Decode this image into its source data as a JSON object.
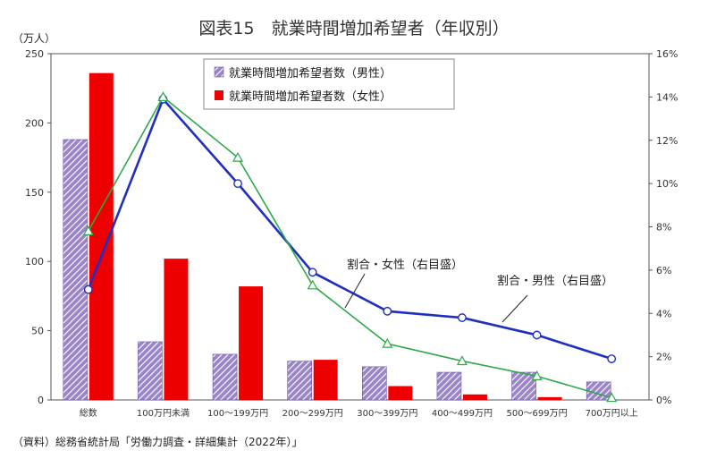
{
  "chart_data": {
    "type": "bar",
    "title": "図表15　就業時間増加希望者（年収別）",
    "y_left_unit": "（万人）",
    "y_left_ticks": [
      "0",
      "50",
      "100",
      "150",
      "200",
      "250"
    ],
    "y_left_lim": [
      0,
      250
    ],
    "y_right_ticks": [
      "0%",
      "2%",
      "4%",
      "6%",
      "8%",
      "10%",
      "12%",
      "14%",
      "16%"
    ],
    "y_right_lim": [
      0,
      16
    ],
    "categories": [
      "総数",
      "100万円未満",
      "100～199万円",
      "200～299万円",
      "300～399万円",
      "400～499万円",
      "500～699万円",
      "700万円以上"
    ],
    "series": [
      {
        "name": "就業時間増加希望者数（男性）",
        "kind": "bar",
        "axis": "left",
        "values": [
          188,
          42,
          33,
          28,
          24,
          20,
          20,
          13
        ]
      },
      {
        "name": "就業時間増加希望者数（女性）",
        "kind": "bar",
        "axis": "left",
        "values": [
          236,
          102,
          82,
          29,
          10,
          4,
          2,
          0
        ]
      },
      {
        "name": "割合・男性（右目盛）",
        "kind": "line",
        "axis": "right",
        "values": [
          5.1,
          13.9,
          10.0,
          5.9,
          4.1,
          3.8,
          3.0,
          1.9
        ]
      },
      {
        "name": "割合・女性（右目盛）",
        "kind": "line",
        "axis": "right",
        "values": [
          7.8,
          14.0,
          11.2,
          5.3,
          2.6,
          1.8,
          1.1,
          0.1
        ]
      }
    ],
    "legend_position": "top-center",
    "grid": false,
    "colors": {
      "male_bar_fill": "#9b85c9",
      "male_bar_stripe": "#ffffff",
      "female_bar": "#ee0000",
      "male_line": "#1f2fbf",
      "female_line": "#2ea84a",
      "axis": "#555555"
    },
    "annotations": {
      "female": "割合・女性（右目盛）",
      "male": "割合・男性（右目盛）"
    }
  },
  "source": "（資料）総務省統計局「労働力調査・詳細集計（2022年）」"
}
